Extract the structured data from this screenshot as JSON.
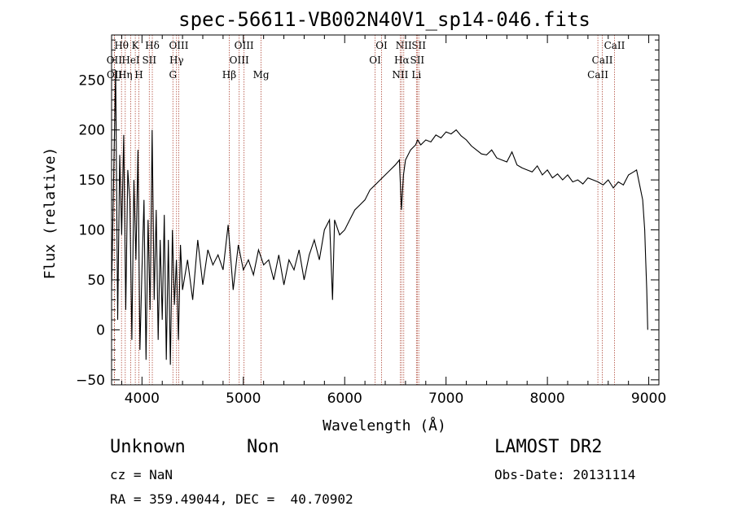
{
  "chart_data": {
    "type": "line",
    "title": "spec-56611-VB002N40V1_sp14-046.fits",
    "xlabel": "Wavelength (Å)",
    "ylabel": "Flux (relative)",
    "xlim": [
      3700,
      9100
    ],
    "ylim": [
      -55,
      295
    ],
    "xticks": [
      4000,
      5000,
      6000,
      7000,
      8000,
      9000
    ],
    "yticks": [
      -50,
      0,
      50,
      100,
      150,
      200,
      250
    ],
    "series": [
      {
        "x": [
          3700,
          3740,
          3760,
          3780,
          3800,
          3820,
          3840,
          3860,
          3880,
          3900,
          3920,
          3940,
          3960,
          3980,
          4000,
          4020,
          4040,
          4060,
          4080,
          4100,
          4120,
          4140,
          4160,
          4180,
          4200,
          4220,
          4240,
          4260,
          4280,
          4300,
          4320,
          4340,
          4360,
          4380,
          4400,
          4450,
          4500,
          4550,
          4600,
          4650,
          4700,
          4750,
          4800,
          4850,
          4900,
          4950,
          5000,
          5050,
          5100,
          5150,
          5200,
          5250,
          5300,
          5350,
          5400,
          5450,
          5500,
          5550,
          5600,
          5650,
          5700,
          5750,
          5800,
          5850,
          5880,
          5900,
          5950,
          6000,
          6050,
          6100,
          6150,
          6200,
          6250,
          6300,
          6350,
          6400,
          6450,
          6500,
          6540,
          6560,
          6580,
          6600,
          6650,
          6700,
          6720,
          6750,
          6800,
          6850,
          6900,
          6950,
          7000,
          7050,
          7100,
          7150,
          7200,
          7250,
          7300,
          7350,
          7400,
          7450,
          7500,
          7550,
          7600,
          7650,
          7700,
          7750,
          7800,
          7850,
          7900,
          7950,
          8000,
          8050,
          8100,
          8150,
          8200,
          8250,
          8300,
          8350,
          8400,
          8450,
          8500,
          8550,
          8600,
          8650,
          8700,
          8750,
          8800,
          8850,
          8880,
          8900,
          8920,
          8940,
          8960,
          8970,
          8980,
          8990
        ],
        "y": [
          40,
          260,
          10,
          175,
          95,
          195,
          20,
          160,
          130,
          -10,
          150,
          70,
          180,
          -20,
          60,
          130,
          -30,
          110,
          20,
          200,
          30,
          120,
          -10,
          90,
          10,
          115,
          -30,
          90,
          -35,
          100,
          25,
          70,
          -10,
          85,
          40,
          70,
          30,
          90,
          45,
          80,
          65,
          75,
          60,
          105,
          40,
          85,
          60,
          70,
          55,
          80,
          65,
          70,
          50,
          75,
          45,
          70,
          60,
          80,
          50,
          75,
          90,
          70,
          100,
          110,
          30,
          110,
          95,
          100,
          110,
          120,
          125,
          130,
          140,
          145,
          150,
          155,
          160,
          165,
          170,
          120,
          155,
          170,
          180,
          185,
          190,
          185,
          190,
          188,
          195,
          192,
          198,
          196,
          200,
          194,
          190,
          184,
          180,
          176,
          175,
          180,
          172,
          170,
          168,
          178,
          165,
          162,
          160,
          158,
          164,
          155,
          160,
          152,
          156,
          150,
          155,
          148,
          150,
          146,
          152,
          150,
          148,
          145,
          150,
          142,
          148,
          145,
          155,
          158,
          160,
          150,
          140,
          130,
          100,
          70,
          40,
          0
        ]
      }
    ],
    "spectral_lines": [
      {
        "label": "Hθ",
        "x": 3798,
        "row": 1
      },
      {
        "label": "OII",
        "x": 3727,
        "row": 2
      },
      {
        "label": "OII",
        "x": 3729,
        "row": 3
      },
      {
        "label": "HeI",
        "x": 3889,
        "row": 2
      },
      {
        "label": "Hη",
        "x": 3835,
        "row": 3
      },
      {
        "label": "K",
        "x": 3934,
        "row": 1
      },
      {
        "label": "SII",
        "x": 4072,
        "row": 2
      },
      {
        "label": "H",
        "x": 3969,
        "row": 3
      },
      {
        "label": "Hδ",
        "x": 4102,
        "row": 1
      },
      {
        "label": "OIII",
        "x": 4363,
        "row": 1
      },
      {
        "label": "Hγ",
        "x": 4341,
        "row": 2
      },
      {
        "label": "G",
        "x": 4305,
        "row": 3
      },
      {
        "label": "Hβ",
        "x": 4861,
        "row": 3
      },
      {
        "label": "OIII",
        "x": 5007,
        "row": 1
      },
      {
        "label": "OIII",
        "x": 4959,
        "row": 2
      },
      {
        "label": "Mg",
        "x": 5175,
        "row": 3
      },
      {
        "label": "OI",
        "x": 6364,
        "row": 1
      },
      {
        "label": "OI",
        "x": 6300,
        "row": 2
      },
      {
        "label": "NII",
        "x": 6583,
        "row": 1
      },
      {
        "label": "Hα",
        "x": 6563,
        "row": 2
      },
      {
        "label": "NII",
        "x": 6548,
        "row": 3
      },
      {
        "label": "SII",
        "x": 6731,
        "row": 1
      },
      {
        "label": "SII",
        "x": 6716,
        "row": 2
      },
      {
        "label": "Li",
        "x": 6708,
        "row": 3
      },
      {
        "label": "CaII",
        "x": 8662,
        "row": 1
      },
      {
        "label": "CaII",
        "x": 8542,
        "row": 2
      },
      {
        "label": "CaII",
        "x": 8498,
        "row": 3
      }
    ]
  },
  "info": {
    "class": "Unknown",
    "subclass": "Non",
    "cz": "cz = NaN",
    "coords": "RA = 359.49044, DEC =  40.70902",
    "survey": "LAMOST DR2",
    "obs_date": "Obs-Date: 20131114"
  }
}
